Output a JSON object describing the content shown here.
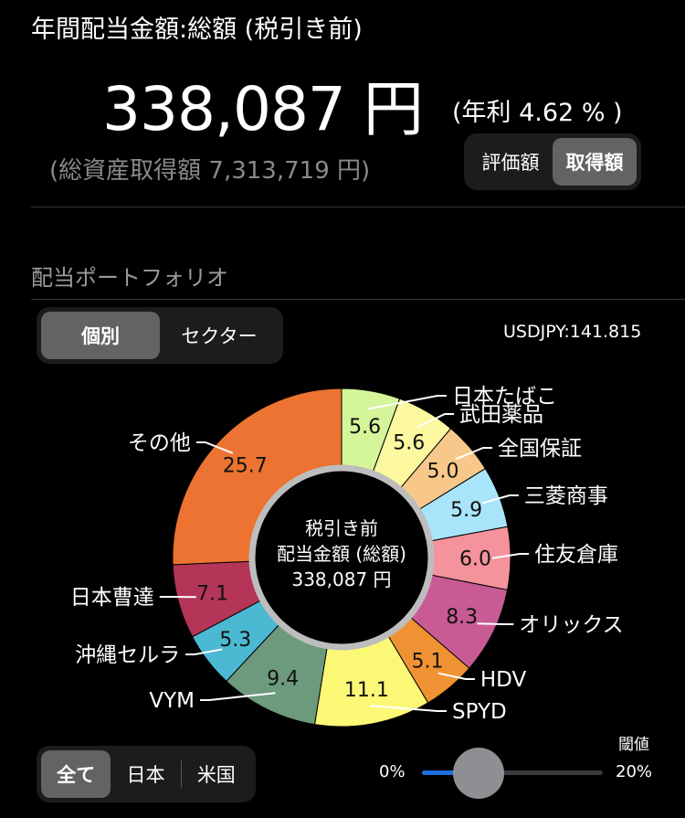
{
  "header": {
    "title": "年間配当金額:総額 (税引き前)",
    "total_amount": "338,087 円",
    "yield": "(年利 4.62 % )",
    "total_asset": "(総資産取得額 7,313,719 円)"
  },
  "value_toggle": {
    "options": [
      "評価額",
      "取得額"
    ],
    "selected": "取得額"
  },
  "portfolio": {
    "section_title": "配当ポートフォリオ",
    "fx_rate": "USDJPY:141.815"
  },
  "view_toggle": {
    "options": [
      "個別",
      "セクター"
    ],
    "selected": "個別"
  },
  "chart_data": {
    "type": "pie",
    "center_lines": [
      "税引き前",
      "配当金額 (総額)",
      "338,087 円"
    ],
    "slices": [
      {
        "label": "日本たばこ",
        "value": 5.6,
        "color": "#d4f59a"
      },
      {
        "label": "武田薬品",
        "value": 5.6,
        "color": "#fbf8a0"
      },
      {
        "label": "全国保証",
        "value": 5.0,
        "color": "#f7c88a"
      },
      {
        "label": "三菱商事",
        "value": 5.9,
        "color": "#a8e4fa"
      },
      {
        "label": "住友倉庫",
        "value": 6.0,
        "color": "#f4939b"
      },
      {
        "label": "オリックス",
        "value": 8.3,
        "color": "#c85a94"
      },
      {
        "label": "HDV",
        "value": 5.1,
        "color": "#ee9233"
      },
      {
        "label": "SPYD",
        "value": 11.1,
        "color": "#fbf876"
      },
      {
        "label": "VYM",
        "value": 9.4,
        "color": "#6d9a7c"
      },
      {
        "label": "沖縄セルラ",
        "value": 5.3,
        "color": "#4bb9d2"
      },
      {
        "label": "日本曹達",
        "value": 7.1,
        "color": "#b43557"
      },
      {
        "label": "その他",
        "value": 25.7,
        "color": "#ec7331"
      }
    ]
  },
  "region_toggle": {
    "options": [
      "全て",
      "日本",
      "米国"
    ],
    "selected": "全て"
  },
  "threshold": {
    "label": "閾値",
    "min": "0%",
    "max": "20%",
    "value_fraction": 0.24
  }
}
